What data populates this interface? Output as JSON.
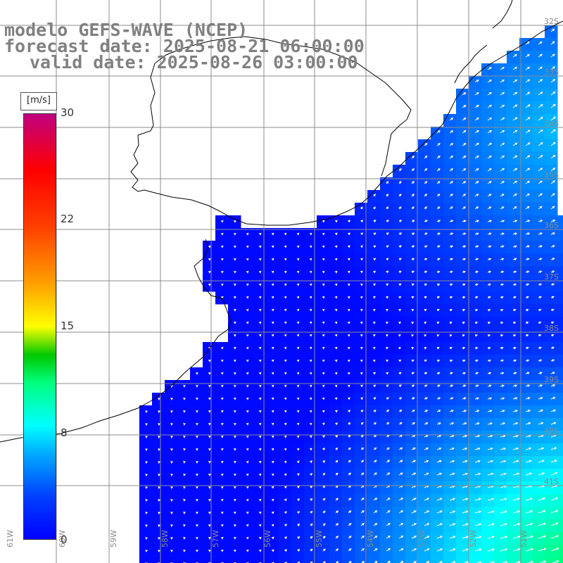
{
  "title": {
    "line1": "modelo GEFS-WAVE (NCEP)",
    "line2": "forecast date: 2025-08-21 06:00:00",
    "line3": "valid date: 2025-08-26 03:00:00"
  },
  "colorbar": {
    "units": "[m/s]",
    "ticks": [
      "30",
      "22",
      "15",
      "8",
      "0"
    ],
    "min": 0,
    "max": 30,
    "stops": [
      {
        "v": 0,
        "c": "#0000ff"
      },
      {
        "v": 3,
        "c": "#0040ff"
      },
      {
        "v": 6,
        "c": "#00aaff"
      },
      {
        "v": 8,
        "c": "#00ffff"
      },
      {
        "v": 11,
        "c": "#00ff80"
      },
      {
        "v": 13,
        "c": "#00c800"
      },
      {
        "v": 15,
        "c": "#ffff00"
      },
      {
        "v": 18,
        "c": "#ffa000"
      },
      {
        "v": 22,
        "c": "#ff4000"
      },
      {
        "v": 26,
        "c": "#ff0000"
      },
      {
        "v": 30,
        "c": "#c00080"
      }
    ]
  },
  "lat_labels": [
    "32S",
    "33S",
    "34S",
    "35S",
    "36S",
    "37S",
    "38S",
    "39S",
    "40S",
    "41S"
  ],
  "lon_labels": [
    "61W",
    "60W",
    "59W",
    "58W",
    "57W",
    "56W",
    "55W",
    "54W",
    "53W",
    "52W",
    "51W"
  ],
  "colors": {
    "land": "#ffffff",
    "grid": "#8c8c8c",
    "coast": "#000000",
    "arrow": "#ffffff"
  },
  "field": {
    "description_units": "m/s",
    "mean_direction": "northeast",
    "max_speed_approx": 12
  }
}
